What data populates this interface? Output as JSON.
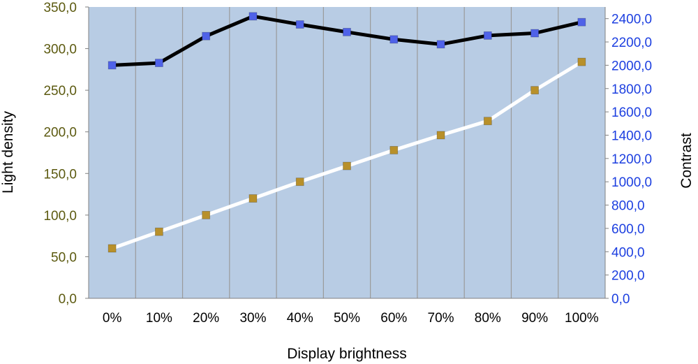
{
  "chart_data": {
    "type": "line",
    "categories": [
      "0%",
      "10%",
      "20%",
      "30%",
      "40%",
      "50%",
      "60%",
      "70%",
      "80%",
      "90%",
      "100%"
    ],
    "xlabel": "Display brightness",
    "ylabel_left": "Light density",
    "ylabel_right": "Contrast",
    "ylim_left": [
      0,
      350
    ],
    "ylim_right": [
      0,
      2500
    ],
    "yticks_left": [
      "0,0",
      "50,0",
      "100,0",
      "150,0",
      "200,0",
      "250,0",
      "300,0",
      "350,0"
    ],
    "yticks_right": [
      "0,0",
      "200,0",
      "400,0",
      "600,0",
      "800,0",
      "1000,0",
      "1200,0",
      "1400,0",
      "1600,0",
      "1800,0",
      "2000,0",
      "2200,0",
      "2400,0"
    ],
    "grid": "vertical",
    "series": [
      {
        "axis": "left",
        "values": [
          60,
          80,
          100,
          120,
          140,
          159,
          178,
          196,
          213,
          250,
          284
        ],
        "line_color": "#ffffff",
        "marker_color": "#b8902a"
      },
      {
        "axis": "right",
        "values": [
          2000,
          2020,
          2250,
          2420,
          2350,
          2285,
          2222,
          2180,
          2255,
          2275,
          2370
        ],
        "line_color": "#000000",
        "marker_color": "#4f62e8"
      }
    ],
    "colors": {
      "plot_background": "#b8cce4",
      "grid": "#9a9a9a",
      "left_tick_text": "#5c5a10",
      "right_tick_text": "#1c3fe0"
    }
  }
}
